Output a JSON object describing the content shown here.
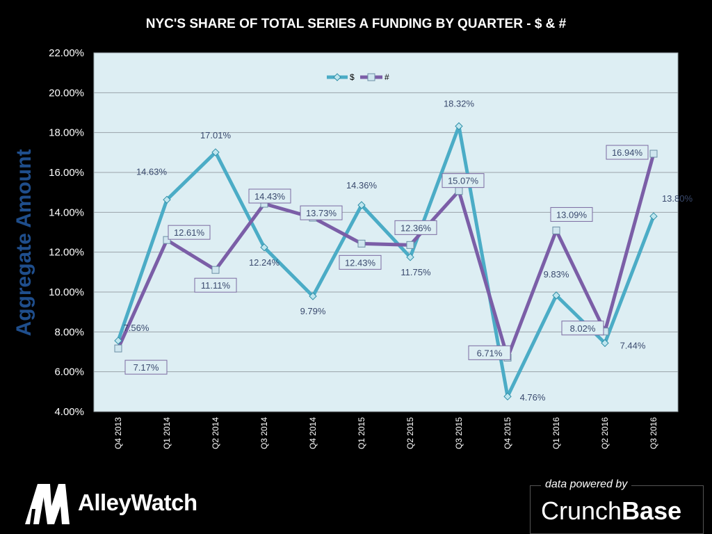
{
  "chart_data": {
    "type": "line",
    "title": "NYC'S SHARE OF TOTAL SERIES A FUNDING BY QUARTER - $ & #",
    "ylabel": "Aggregate  Amount",
    "xlabel": "",
    "categories": [
      "Q4 2013",
      "Q1 2014",
      "Q2 2014",
      "Q3 2014",
      "Q4 2014",
      "Q1 2015",
      "Q2 2015",
      "Q3 2015",
      "Q4 2015",
      "Q1 2016",
      "Q2 2016",
      "Q3 2016"
    ],
    "ylim": [
      4,
      22
    ],
    "yticks": [
      4,
      6,
      8,
      10,
      12,
      14,
      16,
      18,
      20,
      22
    ],
    "ytick_labels": [
      "4.00%",
      "6.00%",
      "8.00%",
      "10.00%",
      "12.00%",
      "14.00%",
      "16.00%",
      "18.00%",
      "20.00%",
      "22.00%"
    ],
    "grid": true,
    "legend_position": "top-center",
    "series": [
      {
        "name": "$",
        "color": "#4bacc6",
        "marker": "diamond",
        "values": [
          7.56,
          14.63,
          17.01,
          12.24,
          9.79,
          14.36,
          11.75,
          18.32,
          4.76,
          9.83,
          7.44,
          13.8
        ],
        "labels": [
          "7.56%",
          "14.63%",
          "17.01%",
          "12.24%",
          "9.79%",
          "14.36%",
          "11.75%",
          "18.32%",
          "4.76%",
          "9.83%",
          "7.44%",
          "13.80%"
        ],
        "boxed_labels": false
      },
      {
        "name": "#",
        "color": "#7b5ea7",
        "marker": "square",
        "values": [
          7.17,
          12.61,
          11.11,
          14.43,
          13.73,
          12.43,
          12.36,
          15.07,
          6.71,
          13.09,
          8.02,
          16.94
        ],
        "labels": [
          "7.17%",
          "12.61%",
          "11.11%",
          "14.43%",
          "13.73%",
          "12.43%",
          "12.36%",
          "15.07%",
          "6.71%",
          "13.09%",
          "8.02%",
          "16.94%"
        ],
        "boxed_labels": true
      }
    ]
  },
  "branding": {
    "alleywatch_text": "AlleyWatch",
    "powered_by": "data powered by",
    "crunch_regular": "Crunch",
    "crunch_bold": "Base"
  }
}
